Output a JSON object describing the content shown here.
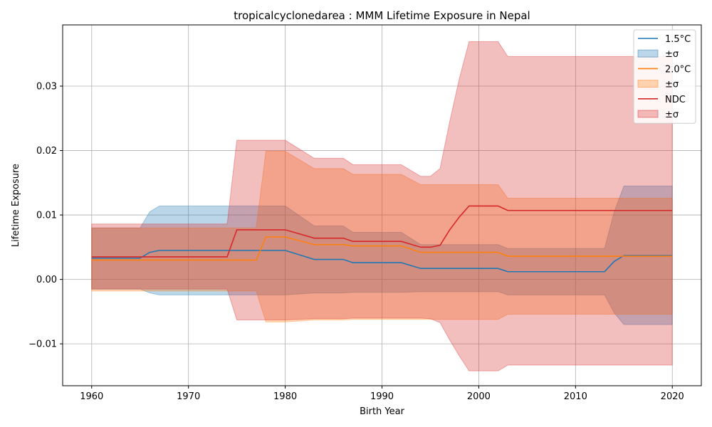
{
  "chart_data": {
    "type": "line",
    "title": "tropicalcyclonedarea : MMM Lifetime Exposure in Nepal",
    "xlabel": "Birth Year",
    "ylabel": "Lifetime Exposure",
    "xlim": [
      1957,
      2023
    ],
    "ylim": [
      -0.0165,
      0.0395
    ],
    "xticks": [
      1960,
      1970,
      1980,
      1990,
      2000,
      2010,
      2020
    ],
    "xtick_labels": [
      "1960",
      "1970",
      "1980",
      "1990",
      "2000",
      "2010",
      "2020"
    ],
    "yticks": [
      -0.01,
      0.0,
      0.01,
      0.02,
      0.03
    ],
    "ytick_labels": [
      "−0.01",
      "0.00",
      "0.01",
      "0.02",
      "0.03"
    ],
    "grid": true,
    "legend_position": "top-right",
    "series": [
      {
        "name": "1.5°C",
        "band_name": "±σ",
        "color": "#1f77b4",
        "points": [
          [
            1960,
            0.0033
          ],
          [
            1965,
            0.0033
          ],
          [
            1966,
            0.0042
          ],
          [
            1967,
            0.0045
          ],
          [
            1980,
            0.0045
          ],
          [
            1983,
            0.0031
          ],
          [
            1986,
            0.0031
          ],
          [
            1987,
            0.0026
          ],
          [
            1992,
            0.0026
          ],
          [
            1994,
            0.0017
          ],
          [
            2002,
            0.0017
          ],
          [
            2003,
            0.0012
          ],
          [
            2013,
            0.0012
          ],
          [
            2014,
            0.0028
          ],
          [
            2015,
            0.0037
          ],
          [
            2020,
            0.0037
          ]
        ],
        "band_upper": [
          [
            1960,
            0.008
          ],
          [
            1965,
            0.008
          ],
          [
            1966,
            0.0105
          ],
          [
            1967,
            0.0114
          ],
          [
            1980,
            0.0114
          ],
          [
            1983,
            0.0083
          ],
          [
            1986,
            0.0083
          ],
          [
            1987,
            0.0073
          ],
          [
            1992,
            0.0073
          ],
          [
            1994,
            0.0054
          ],
          [
            2002,
            0.0054
          ],
          [
            2003,
            0.0048
          ],
          [
            2013,
            0.0048
          ],
          [
            2014,
            0.0105
          ],
          [
            2015,
            0.0145
          ],
          [
            2020,
            0.0145
          ]
        ],
        "band_lower": [
          [
            1960,
            -0.0015
          ],
          [
            1965,
            -0.0015
          ],
          [
            1966,
            -0.0021
          ],
          [
            1967,
            -0.0024
          ],
          [
            1980,
            -0.0024
          ],
          [
            1983,
            -0.0021
          ],
          [
            1986,
            -0.0021
          ],
          [
            1987,
            -0.002
          ],
          [
            1992,
            -0.002
          ],
          [
            1994,
            -0.0019
          ],
          [
            2002,
            -0.0019
          ],
          [
            2003,
            -0.0024
          ],
          [
            2013,
            -0.0024
          ],
          [
            2014,
            -0.0052
          ],
          [
            2015,
            -0.007
          ],
          [
            2020,
            -0.007
          ]
        ]
      },
      {
        "name": "2.0°C",
        "band_name": "±σ",
        "color": "#ff7f0e",
        "points": [
          [
            1960,
            0.003
          ],
          [
            1977,
            0.003
          ],
          [
            1978,
            0.0066
          ],
          [
            1980,
            0.0066
          ],
          [
            1983,
            0.0054
          ],
          [
            1986,
            0.0054
          ],
          [
            1987,
            0.0052
          ],
          [
            1992,
            0.0052
          ],
          [
            1994,
            0.0042
          ],
          [
            2002,
            0.0042
          ],
          [
            2003,
            0.0036
          ],
          [
            2020,
            0.0036
          ]
        ],
        "band_upper": [
          [
            1960,
            0.008
          ],
          [
            1977,
            0.008
          ],
          [
            1978,
            0.0199
          ],
          [
            1980,
            0.0199
          ],
          [
            1983,
            0.0172
          ],
          [
            1986,
            0.0172
          ],
          [
            1987,
            0.0163
          ],
          [
            1992,
            0.0163
          ],
          [
            1994,
            0.0147
          ],
          [
            2002,
            0.0147
          ],
          [
            2003,
            0.0126
          ],
          [
            2020,
            0.0126
          ]
        ],
        "band_lower": [
          [
            1960,
            -0.0018
          ],
          [
            1977,
            -0.0018
          ],
          [
            1978,
            -0.0066
          ],
          [
            1980,
            -0.0066
          ],
          [
            1983,
            -0.0063
          ],
          [
            1986,
            -0.0063
          ],
          [
            1987,
            -0.0062
          ],
          [
            1992,
            -0.0062
          ],
          [
            1994,
            -0.0062
          ],
          [
            2002,
            -0.0062
          ],
          [
            2003,
            -0.0054
          ],
          [
            2020,
            -0.0054
          ]
        ]
      },
      {
        "name": "NDC",
        "band_name": "±σ",
        "color": "#d62728",
        "points": [
          [
            1960,
            0.0035
          ],
          [
            1974,
            0.0035
          ],
          [
            1975,
            0.0077
          ],
          [
            1980,
            0.0077
          ],
          [
            1983,
            0.0064
          ],
          [
            1986,
            0.0064
          ],
          [
            1987,
            0.0059
          ],
          [
            1992,
            0.0059
          ],
          [
            1994,
            0.005
          ],
          [
            1995,
            0.005
          ],
          [
            1996,
            0.0053
          ],
          [
            1997,
            0.0077
          ],
          [
            1998,
            0.0097
          ],
          [
            1999,
            0.0114
          ],
          [
            2002,
            0.0114
          ],
          [
            2003,
            0.0107
          ],
          [
            2020,
            0.0107
          ]
        ],
        "band_upper": [
          [
            1960,
            0.0086
          ],
          [
            1974,
            0.0086
          ],
          [
            1975,
            0.0216
          ],
          [
            1980,
            0.0216
          ],
          [
            1983,
            0.0188
          ],
          [
            1986,
            0.0188
          ],
          [
            1987,
            0.0178
          ],
          [
            1992,
            0.0178
          ],
          [
            1994,
            0.016
          ],
          [
            1995,
            0.016
          ],
          [
            1996,
            0.0172
          ],
          [
            1997,
            0.0245
          ],
          [
            1998,
            0.0312
          ],
          [
            1999,
            0.0369
          ],
          [
            2002,
            0.0369
          ],
          [
            2003,
            0.0346
          ],
          [
            2020,
            0.0346
          ]
        ],
        "band_lower": [
          [
            1960,
            -0.0015
          ],
          [
            1974,
            -0.0015
          ],
          [
            1975,
            -0.0063
          ],
          [
            1980,
            -0.0063
          ],
          [
            1983,
            -0.0061
          ],
          [
            1986,
            -0.0061
          ],
          [
            1987,
            -0.006
          ],
          [
            1992,
            -0.006
          ],
          [
            1994,
            -0.006
          ],
          [
            1995,
            -0.0061
          ],
          [
            1996,
            -0.0067
          ],
          [
            1997,
            -0.0094
          ],
          [
            1998,
            -0.0119
          ],
          [
            1999,
            -0.0142
          ],
          [
            2002,
            -0.0142
          ],
          [
            2003,
            -0.0133
          ],
          [
            2020,
            -0.0133
          ]
        ]
      }
    ]
  }
}
